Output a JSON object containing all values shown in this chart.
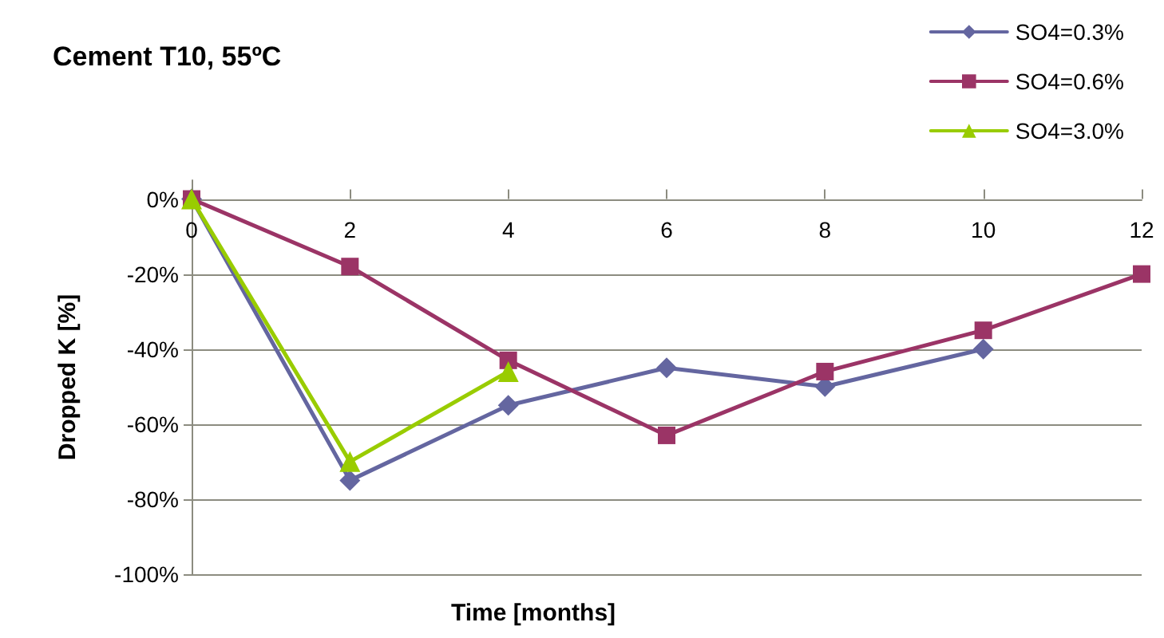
{
  "chart_data": {
    "type": "line",
    "title": "Cement T10, 55ºC",
    "xlabel": "Time [months]",
    "ylabel": "Dropped K [%]",
    "x": [
      0,
      2,
      4,
      6,
      8,
      10,
      12
    ],
    "series": [
      {
        "name": "SO4=0.3%",
        "color": "#6466a0",
        "marker": "diamond",
        "values": [
          0,
          -75,
          -55,
          -45,
          -50,
          -40,
          null
        ]
      },
      {
        "name": "SO4=0.6%",
        "color": "#9b3466",
        "marker": "square",
        "values": [
          0,
          -18,
          -43,
          -63,
          -46,
          -35,
          -20
        ]
      },
      {
        "name": "SO4=3.0%",
        "color": "#99cc00",
        "marker": "triangle",
        "x": [
          0,
          2,
          4
        ],
        "values": [
          0,
          -70,
          -46
        ]
      }
    ],
    "xlim": [
      0,
      12
    ],
    "xticks": [
      0,
      2,
      4,
      6,
      8,
      10,
      12
    ],
    "ylim": [
      -100,
      5
    ],
    "yticks": [
      {
        "value": -100,
        "label": "-100%"
      },
      {
        "value": -80,
        "label": "-80%"
      },
      {
        "value": -60,
        "label": "-60%"
      },
      {
        "value": -40,
        "label": "-40%"
      },
      {
        "value": -20,
        "label": "-20%"
      },
      {
        "value": 0,
        "label": "0%"
      }
    ],
    "grid": "y",
    "legend": "top right"
  }
}
